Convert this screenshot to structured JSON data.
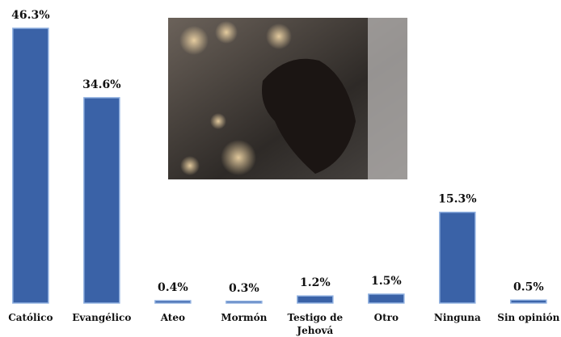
{
  "chart_data": {
    "type": "bar",
    "categories": [
      "Católico",
      "Evangélico",
      "Ateo",
      "Mormón",
      "Testigo de Jehová",
      "Otro",
      "Ninguna",
      "Sin opinión"
    ],
    "values": [
      46.3,
      34.6,
      0.4,
      0.3,
      1.2,
      1.5,
      15.3,
      0.5
    ],
    "value_labels": [
      "46.3%",
      "34.6%",
      "0.4%",
      "0.3%",
      "1.2%",
      "1.5%",
      "15.3%",
      "0.5%"
    ],
    "color": "#3a62a7"
  }
}
